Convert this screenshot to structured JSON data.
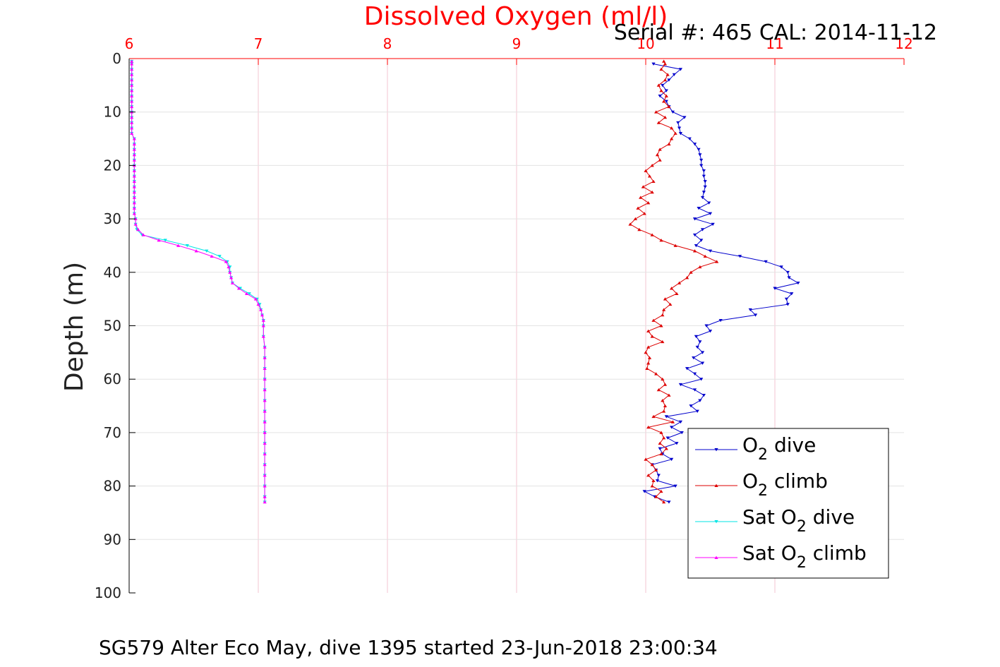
{
  "chart_data": {
    "type": "line",
    "title": "Dissolved Oxygen (ml/l)",
    "subtitle": "Serial #: 465  CAL: 2014-11-12",
    "caption": "SG579 Alter Eco May, dive 1395 started 23-Jun-2018 23:00:34",
    "xlabel": "",
    "ylabel": "Depth (m)",
    "xlim": [
      6,
      12
    ],
    "ylim": [
      0,
      100
    ],
    "x_axis_position": "top",
    "y_reversed": true,
    "grid": true,
    "x_ticks": [
      "6",
      "7",
      "8",
      "9",
      "10",
      "11",
      "12"
    ],
    "y_ticks": [
      "0",
      "10",
      "20",
      "30",
      "40",
      "50",
      "60",
      "70",
      "80",
      "90",
      "100"
    ],
    "legend_position": "bottom-right",
    "colors": {
      "title": "#ff0000",
      "x_ticks": "#ff0000",
      "x_grid": "#f3c6d2",
      "y_grid": "#e3e3e3",
      "axis": "#000000"
    },
    "series": [
      {
        "name": "O2 dive",
        "legend": {
          "main": "O",
          "sub": "2",
          "rest": " dive"
        },
        "color": "#0000cc",
        "marker": "triangle-down",
        "depth": [
          1,
          2,
          3,
          4,
          5,
          6,
          7,
          8,
          9,
          10,
          11,
          12,
          13,
          14,
          15,
          16,
          17,
          18,
          19,
          20,
          21,
          22,
          23,
          24,
          25,
          26,
          27,
          28,
          29,
          30,
          31,
          32,
          33,
          34,
          35,
          36,
          37,
          38,
          39,
          40,
          41,
          42,
          43,
          44,
          45,
          46,
          47,
          48,
          49,
          50,
          51,
          52,
          53,
          54,
          55,
          56,
          57,
          58,
          59,
          60,
          61,
          62,
          63,
          64,
          65,
          66,
          67,
          68,
          69,
          70,
          71,
          72,
          73,
          74,
          75,
          76,
          77,
          78,
          79,
          80,
          81,
          82,
          83
        ],
        "values": [
          10.06,
          10.27,
          10.22,
          10.18,
          10.13,
          10.16,
          10.11,
          10.16,
          10.18,
          10.21,
          10.3,
          10.25,
          10.26,
          10.27,
          10.34,
          10.38,
          10.41,
          10.42,
          10.43,
          10.43,
          10.45,
          10.45,
          10.46,
          10.46,
          10.45,
          10.44,
          10.49,
          10.41,
          10.5,
          10.38,
          10.52,
          10.44,
          10.38,
          10.43,
          10.39,
          10.5,
          10.73,
          10.93,
          11.05,
          11.1,
          11.11,
          11.18,
          11.0,
          11.13,
          11.09,
          11.1,
          10.81,
          10.85,
          10.58,
          10.47,
          10.5,
          10.39,
          10.42,
          10.4,
          10.44,
          10.37,
          10.44,
          10.32,
          10.38,
          10.43,
          10.27,
          10.38,
          10.45,
          10.42,
          10.35,
          10.4,
          10.16,
          10.27,
          10.2,
          10.28,
          10.17,
          10.24,
          10.11,
          10.13,
          10.2,
          10.05,
          10.08,
          10.1,
          10.09,
          10.23,
          9.99,
          10.07,
          10.18
        ]
      },
      {
        "name": "O2 climb",
        "legend": {
          "main": "O",
          "sub": "2",
          "rest": " climb"
        },
        "color": "#dd0000",
        "marker": "triangle-up",
        "depth": [
          0.5,
          1,
          2,
          3,
          4,
          5,
          6,
          7,
          8,
          9,
          10,
          11,
          12,
          13,
          14,
          15,
          16,
          17,
          18,
          19,
          20,
          21,
          22,
          23,
          24,
          25,
          26,
          27,
          28,
          29,
          30,
          31,
          32,
          33,
          34,
          35,
          36,
          37,
          38,
          39,
          40,
          41,
          42,
          43,
          44,
          45,
          46,
          47,
          48,
          49,
          50,
          51,
          52,
          53,
          54,
          55,
          56,
          57,
          58,
          59,
          60,
          61,
          62,
          63,
          64,
          65,
          66,
          67,
          68,
          69,
          70,
          71,
          72,
          73,
          74,
          75,
          76,
          77,
          78,
          79,
          80,
          81,
          82,
          83
        ],
        "values": [
          10.14,
          10.15,
          10.12,
          10.17,
          10.15,
          10.1,
          10.12,
          10.16,
          10.14,
          10.18,
          10.08,
          10.15,
          10.1,
          10.2,
          10.23,
          10.2,
          10.18,
          10.11,
          10.09,
          10.11,
          10.05,
          10.0,
          10.03,
          10.06,
          9.98,
          10.05,
          9.96,
          10.02,
          9.94,
          9.99,
          9.92,
          9.88,
          9.95,
          10.05,
          10.12,
          10.23,
          10.38,
          10.46,
          10.55,
          10.42,
          10.35,
          10.32,
          10.26,
          10.2,
          10.24,
          10.15,
          10.19,
          10.14,
          10.13,
          10.06,
          10.12,
          10.02,
          10.05,
          10.13,
          10.02,
          10.0,
          10.03,
          10.02,
          10.01,
          10.08,
          10.13,
          10.15,
          10.1,
          10.18,
          10.13,
          10.15,
          10.14,
          10.06,
          10.21,
          10.02,
          10.12,
          10.14,
          10.11,
          10.16,
          10.12,
          10.0,
          10.05,
          10.08,
          10.02,
          10.06,
          10.05,
          10.12,
          10.08,
          10.14
        ]
      },
      {
        "name": "Sat O2 dive",
        "legend": {
          "main": "Sat O",
          "sub": "2",
          "rest": " dive"
        },
        "color": "#00e5e5",
        "marker": "triangle-down",
        "depth": [
          0.5,
          1,
          2,
          3,
          4,
          5,
          6,
          7,
          8,
          9,
          10,
          11,
          12,
          13,
          14,
          15,
          16,
          17,
          18,
          19,
          20,
          21,
          22,
          23,
          24,
          25,
          26,
          27,
          28,
          29,
          30,
          31,
          32,
          33,
          34,
          35,
          36,
          37,
          38,
          39,
          40,
          41,
          42,
          43,
          44,
          45,
          46,
          47,
          48,
          49,
          50,
          52,
          54,
          56,
          58,
          60,
          62,
          64,
          66,
          68,
          70,
          72,
          74,
          76,
          78,
          80,
          82,
          83
        ],
        "values": [
          6.02,
          6.02,
          6.02,
          6.02,
          6.02,
          6.02,
          6.02,
          6.02,
          6.02,
          6.02,
          6.02,
          6.02,
          6.02,
          6.02,
          6.02,
          6.04,
          6.04,
          6.04,
          6.04,
          6.04,
          6.04,
          6.04,
          6.04,
          6.04,
          6.04,
          6.04,
          6.04,
          6.04,
          6.04,
          6.04,
          6.05,
          6.05,
          6.06,
          6.1,
          6.28,
          6.45,
          6.6,
          6.7,
          6.76,
          6.78,
          6.78,
          6.79,
          6.8,
          6.86,
          6.93,
          6.99,
          7.01,
          7.02,
          7.03,
          7.04,
          7.04,
          7.04,
          7.05,
          7.05,
          7.05,
          7.05,
          7.05,
          7.05,
          7.05,
          7.05,
          7.05,
          7.05,
          7.05,
          7.05,
          7.05,
          7.05,
          7.05,
          7.05
        ]
      },
      {
        "name": "Sat O2 climb",
        "legend": {
          "main": "Sat O",
          "sub": "2",
          "rest": " climb"
        },
        "color": "#ff00ff",
        "marker": "triangle-up",
        "depth": [
          0.5,
          1,
          2,
          3,
          4,
          5,
          6,
          7,
          8,
          9,
          10,
          11,
          12,
          13,
          14,
          15,
          16,
          17,
          18,
          19,
          20,
          21,
          22,
          23,
          24,
          25,
          26,
          27,
          28,
          29,
          30,
          31,
          32,
          33,
          34,
          35,
          36,
          37,
          38,
          39,
          40,
          41,
          42,
          43,
          44,
          45,
          46,
          47,
          48,
          49,
          50,
          52,
          54,
          56,
          58,
          60,
          62,
          64,
          66,
          68,
          70,
          72,
          74,
          76,
          78,
          80,
          82,
          83
        ],
        "values": [
          6.02,
          6.02,
          6.02,
          6.02,
          6.02,
          6.02,
          6.02,
          6.02,
          6.02,
          6.02,
          6.02,
          6.02,
          6.02,
          6.02,
          6.02,
          6.04,
          6.04,
          6.04,
          6.04,
          6.04,
          6.04,
          6.04,
          6.04,
          6.04,
          6.04,
          6.04,
          6.04,
          6.04,
          6.04,
          6.04,
          6.05,
          6.05,
          6.07,
          6.11,
          6.23,
          6.38,
          6.52,
          6.64,
          6.75,
          6.77,
          6.78,
          6.79,
          6.8,
          6.85,
          6.91,
          6.98,
          7.0,
          7.02,
          7.03,
          7.04,
          7.04,
          7.04,
          7.05,
          7.05,
          7.05,
          7.05,
          7.05,
          7.05,
          7.05,
          7.05,
          7.05,
          7.05,
          7.05,
          7.05,
          7.05,
          7.05,
          7.05,
          7.05
        ]
      }
    ]
  }
}
